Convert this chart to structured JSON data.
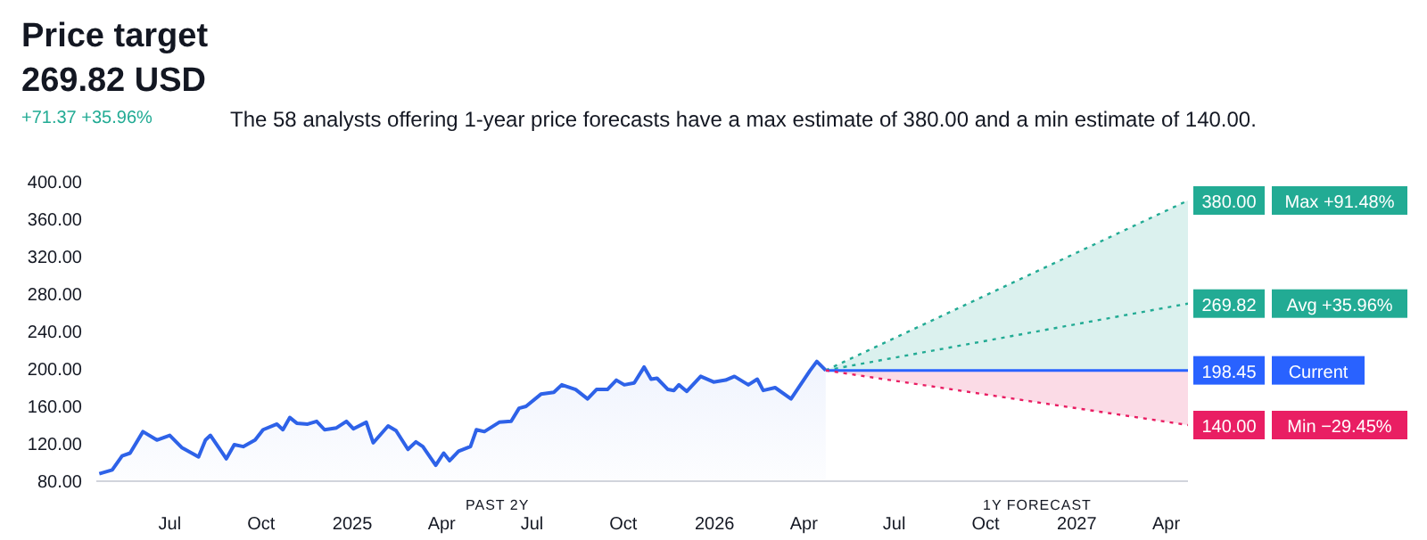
{
  "chart_data": {
    "type": "line",
    "title": "Price target",
    "subtitle": "269.82 USD",
    "annotations": [
      "+71.37 +35.96%",
      "The 58 analysts offering 1-year price forecasts have a max estimate of 380.00 and a min estimate of 140.00.",
      "PAST 2Y",
      "1Y FORECAST"
    ],
    "series": [
      {
        "type": "area",
        "color": "#2e62e8",
        "x": [
          "2024-04-21",
          "2024-05-04",
          "2024-05-14",
          "2024-05-22",
          "2024-06-04",
          "2024-06-18",
          "2024-07-01",
          "2024-07-13",
          "2024-07-30",
          "2024-08-06",
          "2024-08-11",
          "2024-08-27",
          "2024-09-04",
          "2024-09-13",
          "2024-09-25",
          "2024-10-03",
          "2024-10-17",
          "2024-10-23",
          "2024-10-30",
          "2024-11-06",
          "2024-11-17",
          "2024-11-26",
          "2024-12-04",
          "2024-12-16",
          "2024-12-26",
          "2025-01-02",
          "2025-01-15",
          "2025-01-22",
          "2025-02-06",
          "2025-02-14",
          "2025-02-26",
          "2025-03-06",
          "2025-03-13",
          "2025-03-26",
          "2025-04-03",
          "2025-04-09",
          "2025-04-18",
          "2025-04-30",
          "2025-05-06",
          "2025-05-14",
          "2025-05-29",
          "2025-06-10",
          "2025-06-18",
          "2025-06-25",
          "2025-07-10",
          "2025-07-23",
          "2025-07-31",
          "2025-08-14",
          "2025-08-26",
          "2025-09-04",
          "2025-09-15",
          "2025-09-24",
          "2025-10-02",
          "2025-10-12",
          "2025-10-22",
          "2025-10-29",
          "2025-11-04",
          "2025-11-15",
          "2025-11-21",
          "2025-11-26",
          "2025-12-04",
          "2025-12-18",
          "2025-12-31",
          "2026-01-12",
          "2026-01-21",
          "2026-02-04",
          "2026-02-13",
          "2026-02-19",
          "2026-03-03",
          "2026-03-19",
          "2026-04-07",
          "2026-04-14",
          "2026-04-23"
        ],
        "values": [
          88,
          92,
          107,
          110,
          133,
          124,
          129,
          116,
          106,
          124,
          129,
          104,
          119,
          117,
          124,
          135,
          141,
          135,
          148,
          142,
          141,
          144,
          135,
          137,
          144,
          136,
          143,
          121,
          139,
          134,
          114,
          122,
          117,
          97,
          110,
          102,
          112,
          117,
          135,
          133,
          143,
          144,
          158,
          160,
          173,
          175,
          183,
          178,
          168,
          178,
          178,
          188,
          183,
          185,
          202,
          189,
          190,
          178,
          177,
          183,
          176,
          192,
          186,
          188,
          192,
          183,
          189,
          177,
          180,
          168,
          198,
          208,
          198.45
        ]
      },
      {
        "name": "Max +91.48%",
        "type": "area",
        "color": "#22ab94",
        "line_style": "dotted",
        "x": [
          "2026-04-23",
          "2027-04-23"
        ],
        "values": [
          198.45,
          380
        ],
        "value_labels": [
          null,
          "380.00"
        ]
      },
      {
        "name": "Avg +35.96%",
        "color": "#22ab94",
        "line_style": "dotted",
        "x": [
          "2026-04-23",
          "2027-04-23"
        ],
        "values": [
          198.45,
          269.82
        ],
        "value_labels": [
          null,
          "269.82"
        ]
      },
      {
        "name": "Current",
        "color": "#2962ff",
        "line_style": "solid",
        "x": [
          "2026-04-23",
          "2027-04-23"
        ],
        "values": [
          198.45,
          198.45
        ],
        "value_labels": [
          null,
          "198.45"
        ]
      },
      {
        "name": "Min −29.45%",
        "color": "#e91e63",
        "line_style": "dotted",
        "x": [
          "2026-04-23",
          "2027-04-23"
        ],
        "type": "area",
        "values": [
          198.45,
          140
        ],
        "value_labels": [
          null,
          "140.00"
        ]
      }
    ],
    "xlim": [
      "2024-04-18",
      "2027-04-23"
    ],
    "xticks": [
      {
        "value": "2024-07-01",
        "label": "Jul"
      },
      {
        "value": "2024-10-01",
        "label": "Oct"
      },
      {
        "value": "2025-01-01",
        "label": "2025"
      },
      {
        "value": "2025-04-01",
        "label": "Apr"
      },
      {
        "value": "2025-07-01",
        "label": "Jul"
      },
      {
        "value": "2025-10-01",
        "label": "Oct"
      },
      {
        "value": "2026-01-01",
        "label": "2026"
      },
      {
        "value": "2026-04-01",
        "label": "Apr"
      },
      {
        "value": "2026-07-01",
        "label": "Jul"
      },
      {
        "value": "2026-10-01",
        "label": "Oct"
      },
      {
        "value": "2027-01-01",
        "label": "2027"
      },
      {
        "value": "2027-04-01",
        "label": "Apr"
      }
    ],
    "ylim": [
      80,
      400
    ],
    "yticks": [
      {
        "value": 80,
        "label": "80.00"
      },
      {
        "value": 120,
        "label": "120.00"
      },
      {
        "value": 160,
        "label": "160.00"
      },
      {
        "value": 200,
        "label": "200.00"
      },
      {
        "value": 240,
        "label": "240.00"
      },
      {
        "value": 280,
        "label": "280.00"
      },
      {
        "value": 320,
        "label": "320.00"
      },
      {
        "value": 360,
        "label": "360.00"
      },
      {
        "value": 400,
        "label": "400.00"
      }
    ],
    "grid": false,
    "legend": "right"
  }
}
